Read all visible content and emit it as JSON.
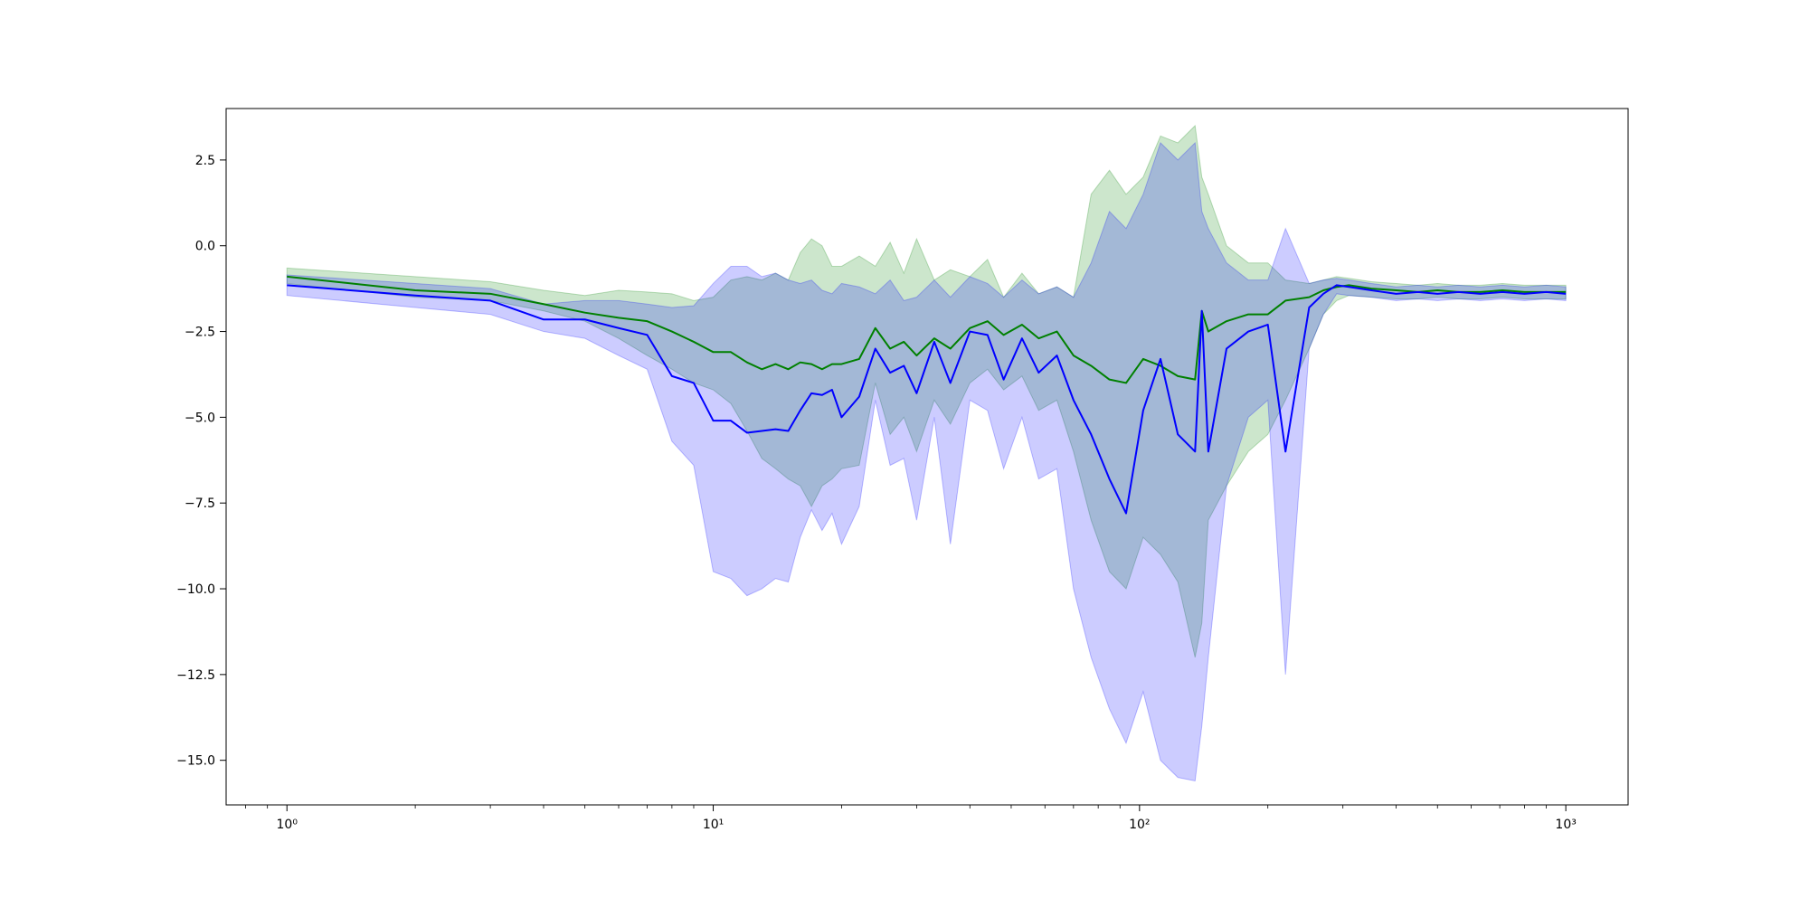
{
  "chart_data": {
    "type": "line",
    "title": "",
    "xlabel": "",
    "ylabel": "",
    "x_scale": "log",
    "xlim": [
      0.72,
      1400
    ],
    "ylim": [
      -16.3,
      4.0
    ],
    "grid": false,
    "legend": "none",
    "x_ticks": [
      {
        "value": 1,
        "label": "10⁰"
      },
      {
        "value": 10,
        "label": "10¹"
      },
      {
        "value": 100,
        "label": "10²"
      },
      {
        "value": 1000,
        "label": "10³"
      }
    ],
    "y_ticks": [
      {
        "value": 2.5,
        "label": "2.5"
      },
      {
        "value": 0.0,
        "label": "0.0"
      },
      {
        "value": -2.5,
        "label": "−2.5"
      },
      {
        "value": -5.0,
        "label": "−5.0"
      },
      {
        "value": -7.5,
        "label": "−7.5"
      },
      {
        "value": -10.0,
        "label": "−10.0"
      },
      {
        "value": -12.5,
        "label": "−12.5"
      },
      {
        "value": -15.0,
        "label": "−15.0"
      }
    ],
    "series": [
      {
        "color": "#008000",
        "band_color": "#008000",
        "band_opacity": 0.2,
        "x": [
          1,
          2,
          3,
          4,
          5,
          6,
          7,
          8,
          9,
          10,
          11,
          12,
          13,
          14,
          15,
          16,
          17,
          18,
          19,
          20,
          22,
          24,
          26,
          28,
          30,
          33,
          36,
          40,
          44,
          48,
          53,
          58,
          64,
          70,
          77,
          85,
          93,
          102,
          112,
          123,
          135,
          140,
          145,
          160,
          180,
          200,
          220,
          250,
          270,
          290,
          310,
          350,
          400,
          450,
          500,
          560,
          630,
          710,
          800,
          900,
          1000
        ],
        "y": [
          -0.9,
          -1.3,
          -1.4,
          -1.7,
          -1.95,
          -2.1,
          -2.2,
          -2.5,
          -2.8,
          -3.1,
          -3.1,
          -3.4,
          -3.6,
          -3.45,
          -3.6,
          -3.4,
          -3.45,
          -3.6,
          -3.45,
          -3.45,
          -3.3,
          -2.4,
          -3.0,
          -2.8,
          -3.2,
          -2.7,
          -3.0,
          -2.4,
          -2.2,
          -2.6,
          -2.3,
          -2.7,
          -2.5,
          -3.2,
          -3.5,
          -3.9,
          -4.0,
          -3.3,
          -3.5,
          -3.8,
          -3.9,
          -1.9,
          -2.5,
          -2.2,
          -2.0,
          -2.0,
          -1.6,
          -1.5,
          -1.3,
          -1.2,
          -1.15,
          -1.25,
          -1.3,
          -1.35,
          -1.3,
          -1.35,
          -1.35,
          -1.3,
          -1.35,
          -1.35,
          -1.35
        ],
        "lower": [
          -1.1,
          -1.5,
          -1.6,
          -1.9,
          -2.2,
          -2.7,
          -3.2,
          -3.6,
          -4.0,
          -4.2,
          -4.6,
          -5.4,
          -6.2,
          -6.5,
          -6.8,
          -7.0,
          -7.6,
          -7.0,
          -6.8,
          -6.5,
          -6.4,
          -4.0,
          -5.5,
          -5.0,
          -6.0,
          -4.5,
          -5.2,
          -4.0,
          -3.6,
          -4.2,
          -3.8,
          -4.8,
          -4.5,
          -6.0,
          -8.0,
          -9.5,
          -10.0,
          -8.5,
          -9.0,
          -9.8,
          -12.0,
          -11.0,
          -8.0,
          -7.0,
          -6.0,
          -5.5,
          -4.5,
          -3.0,
          -2.0,
          -1.6,
          -1.45,
          -1.5,
          -1.55,
          -1.55,
          -1.5,
          -1.55,
          -1.55,
          -1.5,
          -1.55,
          -1.55,
          -1.55
        ],
        "upper": [
          -0.65,
          -0.9,
          -1.05,
          -1.3,
          -1.45,
          -1.3,
          -1.35,
          -1.4,
          -1.6,
          -1.5,
          -1.0,
          -0.9,
          -1.0,
          -0.8,
          -1.0,
          -0.2,
          0.2,
          0.0,
          -0.6,
          -0.6,
          -0.3,
          -0.6,
          0.1,
          -0.8,
          0.2,
          -1.0,
          -0.7,
          -0.9,
          -0.4,
          -1.5,
          -0.8,
          -1.4,
          -1.2,
          -1.5,
          1.5,
          2.2,
          1.5,
          2.0,
          3.2,
          3.0,
          3.5,
          2.0,
          1.5,
          0.0,
          -0.5,
          -0.5,
          -1.0,
          -1.1,
          -1.0,
          -0.9,
          -0.95,
          -1.05,
          -1.1,
          -1.15,
          -1.1,
          -1.15,
          -1.15,
          -1.1,
          -1.15,
          -1.15,
          -1.15
        ]
      },
      {
        "color": "#0000ff",
        "band_color": "#0000ff",
        "band_opacity": 0.2,
        "x": [
          1,
          2,
          3,
          4,
          5,
          6,
          7,
          8,
          9,
          10,
          11,
          12,
          13,
          14,
          15,
          16,
          17,
          18,
          19,
          20,
          22,
          24,
          26,
          28,
          30,
          33,
          36,
          40,
          44,
          48,
          53,
          58,
          64,
          70,
          77,
          85,
          93,
          102,
          112,
          123,
          135,
          140,
          145,
          160,
          180,
          200,
          220,
          250,
          270,
          290,
          310,
          350,
          400,
          450,
          500,
          560,
          630,
          710,
          800,
          900,
          1000
        ],
        "y": [
          -1.15,
          -1.45,
          -1.6,
          -2.15,
          -2.15,
          -2.4,
          -2.6,
          -3.8,
          -4.0,
          -5.1,
          -5.1,
          -5.45,
          -5.4,
          -5.35,
          -5.4,
          -4.8,
          -4.3,
          -4.35,
          -4.2,
          -5.0,
          -4.4,
          -3.0,
          -3.7,
          -3.5,
          -4.3,
          -2.8,
          -4.0,
          -2.5,
          -2.6,
          -3.9,
          -2.7,
          -3.7,
          -3.2,
          -4.5,
          -5.5,
          -6.8,
          -7.8,
          -4.8,
          -3.3,
          -5.5,
          -6.0,
          -1.9,
          -6.0,
          -3.0,
          -2.5,
          -2.3,
          -6.0,
          -1.8,
          -1.4,
          -1.15,
          -1.2,
          -1.3,
          -1.4,
          -1.35,
          -1.4,
          -1.35,
          -1.4,
          -1.35,
          -1.4,
          -1.35,
          -1.4
        ],
        "lower": [
          -1.45,
          -1.8,
          -2.0,
          -2.5,
          -2.7,
          -3.2,
          -3.6,
          -5.7,
          -6.4,
          -9.5,
          -9.7,
          -10.2,
          -10.0,
          -9.7,
          -9.8,
          -8.5,
          -7.7,
          -8.3,
          -7.8,
          -8.7,
          -7.6,
          -4.5,
          -6.4,
          -6.2,
          -8.0,
          -5.0,
          -8.7,
          -4.5,
          -4.8,
          -6.5,
          -5.0,
          -6.8,
          -6.5,
          -10.0,
          -12.0,
          -13.5,
          -14.5,
          -13.0,
          -15.0,
          -15.5,
          -15.6,
          -14.0,
          -12.0,
          -7.0,
          -5.0,
          -4.5,
          -12.5,
          -3.0,
          -2.0,
          -1.4,
          -1.45,
          -1.5,
          -1.6,
          -1.55,
          -1.6,
          -1.55,
          -1.6,
          -1.55,
          -1.6,
          -1.55,
          -1.6
        ],
        "upper": [
          -0.85,
          -1.1,
          -1.25,
          -1.7,
          -1.6,
          -1.6,
          -1.7,
          -1.8,
          -1.75,
          -1.1,
          -0.6,
          -0.6,
          -0.9,
          -0.8,
          -1.0,
          -1.1,
          -1.0,
          -1.3,
          -1.4,
          -1.1,
          -1.2,
          -1.4,
          -1.0,
          -1.6,
          -1.5,
          -1.0,
          -1.5,
          -0.9,
          -1.1,
          -1.5,
          -1.0,
          -1.4,
          -1.2,
          -1.5,
          -0.5,
          1.0,
          0.5,
          1.5,
          3.0,
          2.5,
          3.0,
          1.0,
          0.5,
          -0.5,
          -1.0,
          -1.0,
          0.5,
          -1.1,
          -1.0,
          -0.95,
          -1.0,
          -1.1,
          -1.2,
          -1.15,
          -1.2,
          -1.15,
          -1.2,
          -1.15,
          -1.2,
          -1.15,
          -1.2
        ]
      }
    ]
  }
}
